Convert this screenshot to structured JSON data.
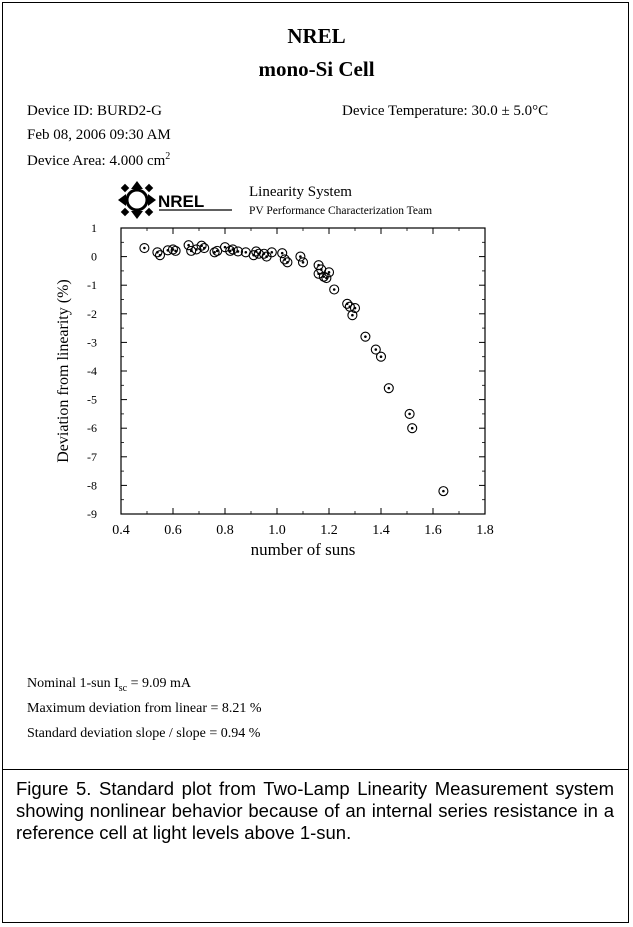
{
  "header": {
    "title_org": "NREL",
    "title_device": "mono-Si Cell"
  },
  "info": {
    "device_id": "Device ID: BURD2-G",
    "device_temp": "Device Temperature: 30.0 ± 5.0°C",
    "datetime": "Feb 08, 2006  09:30 AM",
    "area_prefix": "Device Area: 4.000 cm",
    "area_sup": "2"
  },
  "logo": {
    "text": "NREL",
    "system": "Linearity System",
    "team": "PV Performance Characterization Team"
  },
  "chart_data": {
    "type": "scatter",
    "xlabel": "number of suns",
    "ylabel": "Deviation from linearity (%)",
    "xlim": [
      0.4,
      1.8
    ],
    "ylim": [
      -9,
      1
    ],
    "xticks": [
      "0.4",
      "0.6",
      "0.8",
      "1.0",
      "1.2",
      "1.4",
      "1.6",
      "1.8"
    ],
    "yticks": [
      "1",
      "0",
      "-1",
      "-2",
      "-3",
      "-4",
      "-5",
      "-6",
      "-7",
      "-8",
      "-9"
    ],
    "grid": false,
    "marker": "circle-dot",
    "points": [
      [
        0.49,
        0.3
      ],
      [
        0.54,
        0.15
      ],
      [
        0.55,
        0.05
      ],
      [
        0.58,
        0.22
      ],
      [
        0.6,
        0.25
      ],
      [
        0.61,
        0.2
      ],
      [
        0.66,
        0.4
      ],
      [
        0.67,
        0.2
      ],
      [
        0.69,
        0.25
      ],
      [
        0.71,
        0.38
      ],
      [
        0.72,
        0.3
      ],
      [
        0.76,
        0.15
      ],
      [
        0.77,
        0.2
      ],
      [
        0.8,
        0.33
      ],
      [
        0.82,
        0.2
      ],
      [
        0.83,
        0.25
      ],
      [
        0.85,
        0.18
      ],
      [
        0.88,
        0.15
      ],
      [
        0.91,
        0.05
      ],
      [
        0.92,
        0.18
      ],
      [
        0.93,
        0.1
      ],
      [
        0.95,
        0.1
      ],
      [
        0.96,
        0.0
      ],
      [
        0.98,
        0.15
      ],
      [
        1.02,
        0.12
      ],
      [
        1.03,
        -0.1
      ],
      [
        1.04,
        -0.2
      ],
      [
        1.09,
        0.0
      ],
      [
        1.1,
        -0.2
      ],
      [
        1.16,
        -0.3
      ],
      [
        1.16,
        -0.6
      ],
      [
        1.17,
        -0.45
      ],
      [
        1.18,
        -0.7
      ],
      [
        1.19,
        -0.75
      ],
      [
        1.2,
        -0.55
      ],
      [
        1.22,
        -1.15
      ],
      [
        1.27,
        -1.65
      ],
      [
        1.28,
        -1.75
      ],
      [
        1.29,
        -2.05
      ],
      [
        1.3,
        -1.8
      ],
      [
        1.34,
        -2.8
      ],
      [
        1.38,
        -3.25
      ],
      [
        1.4,
        -3.5
      ],
      [
        1.43,
        -4.6
      ],
      [
        1.51,
        -5.5
      ],
      [
        1.52,
        -6.0
      ],
      [
        1.64,
        -8.2
      ]
    ]
  },
  "stats": {
    "isc_prefix": "Nominal 1-sun I",
    "isc_sub": "sc",
    "isc_suffix": " = 9.09 mA",
    "max_dev": "Maximum deviation from linear = 8.21 %",
    "std_dev": "Standard deviation slope /  slope = 0.94 %"
  },
  "caption": "Figure 5.  Standard plot from Two-Lamp Linearity Measurement system showing nonlinear behavior because of an internal series resistance in a reference cell at light levels above 1-sun."
}
